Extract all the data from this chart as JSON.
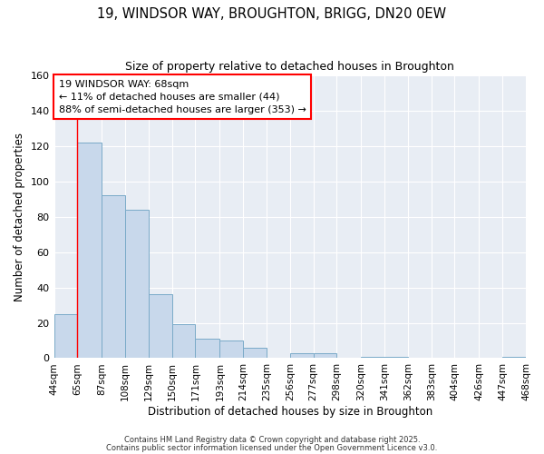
{
  "title_line1": "19, WINDSOR WAY, BROUGHTON, BRIGG, DN20 0EW",
  "title_line2": "Size of property relative to detached houses in Broughton",
  "xlabel": "Distribution of detached houses by size in Broughton",
  "ylabel": "Number of detached properties",
  "bar_left_edges": [
    44,
    65,
    87,
    108,
    129,
    150,
    171,
    193,
    214,
    235,
    256,
    277,
    298,
    320,
    341,
    362,
    383,
    404,
    426,
    447
  ],
  "bar_widths": [
    21,
    22,
    21,
    21,
    21,
    21,
    22,
    21,
    21,
    21,
    21,
    21,
    22,
    21,
    21,
    21,
    21,
    22,
    21,
    21
  ],
  "bar_heights": [
    25,
    122,
    92,
    84,
    36,
    19,
    11,
    10,
    6,
    0,
    3,
    3,
    0,
    1,
    1,
    0,
    0,
    0,
    0,
    1
  ],
  "bar_color": "#c8d8eb",
  "bar_edge_color": "#7aaac8",
  "xticklabels": [
    "44sqm",
    "65sqm",
    "87sqm",
    "108sqm",
    "129sqm",
    "150sqm",
    "171sqm",
    "193sqm",
    "214sqm",
    "235sqm",
    "256sqm",
    "277sqm",
    "298sqm",
    "320sqm",
    "341sqm",
    "362sqm",
    "383sqm",
    "404sqm",
    "426sqm",
    "447sqm",
    "468sqm"
  ],
  "xtick_positions": [
    44,
    65,
    87,
    108,
    129,
    150,
    171,
    193,
    214,
    235,
    256,
    277,
    298,
    320,
    341,
    362,
    383,
    404,
    426,
    447,
    468
  ],
  "ylim": [
    0,
    160
  ],
  "xlim": [
    44,
    468
  ],
  "yticks": [
    0,
    20,
    40,
    60,
    80,
    100,
    120,
    140,
    160
  ],
  "red_line_x": 65,
  "annotation_text": "19 WINDSOR WAY: 68sqm\n← 11% of detached houses are smaller (44)\n88% of semi-detached houses are larger (353) →",
  "bg_color": "#e8edf4",
  "grid_color": "#ffffff",
  "fig_bg_color": "#ffffff",
  "footer_line1": "Contains HM Land Registry data © Crown copyright and database right 2025.",
  "footer_line2": "Contains public sector information licensed under the Open Government Licence v3.0."
}
